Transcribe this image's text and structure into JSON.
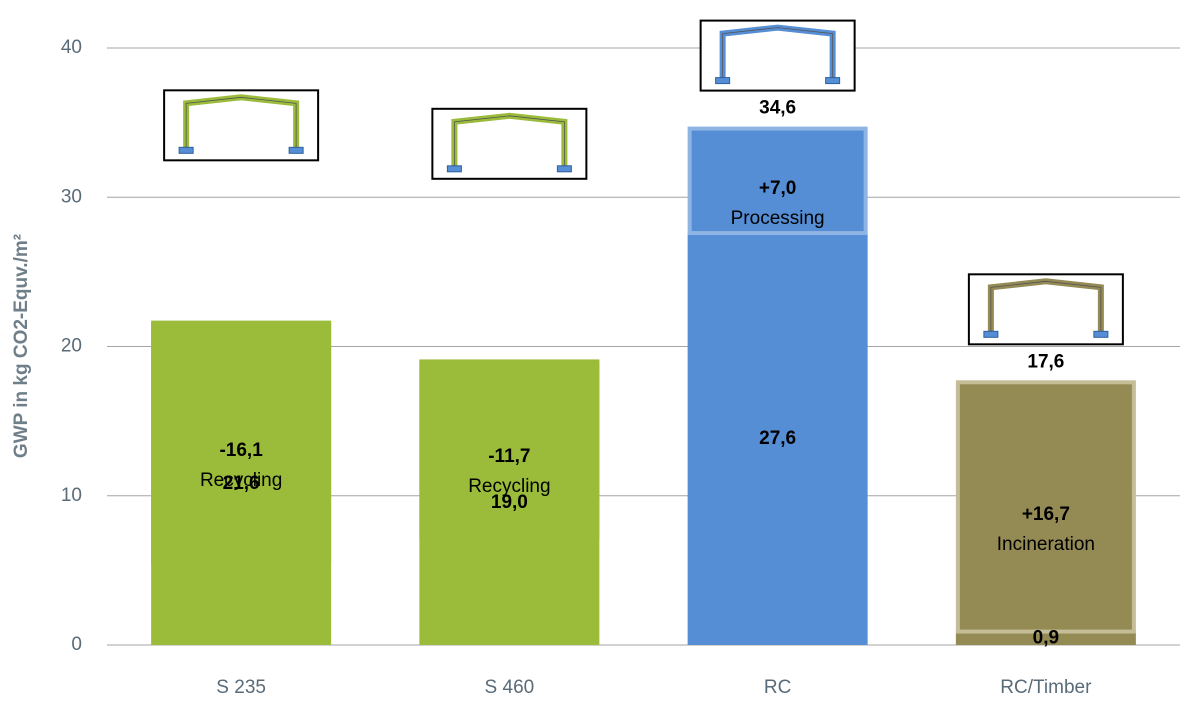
{
  "chart_data": {
    "type": "bar",
    "ylabel": "GWP in kg CO2-Equv./m²",
    "categories": [
      "S 235",
      "S 460",
      "RC",
      "RC/Timber"
    ],
    "values": [
      21.6,
      19.0,
      27.6,
      0.9
    ],
    "value_labels": [
      "21,6",
      "19,0",
      "27,6",
      "0,9"
    ],
    "changes": [
      -16.1,
      -11.7,
      7.0,
      16.7
    ],
    "change_labels": [
      "-16,1",
      "-11,7",
      "+7,0",
      "+16,7"
    ],
    "stages": [
      "Recycling",
      "Recycling",
      "Processing",
      "Incineration"
    ],
    "totals": [
      null,
      null,
      34.6,
      17.6
    ],
    "total_labels": [
      null,
      null,
      "34,6",
      "17,6"
    ],
    "colors": [
      "#9bbb3b",
      "#9bbb3b",
      "#558ed5",
      "#948a54"
    ],
    "change_colors": [
      "#9bbb3b",
      "#9bbb3b",
      "#8eb4e3",
      "#c4bd97"
    ],
    "ylim": [
      0,
      40
    ],
    "yticks": [
      0,
      10,
      20,
      30,
      40
    ],
    "grid": true
  }
}
